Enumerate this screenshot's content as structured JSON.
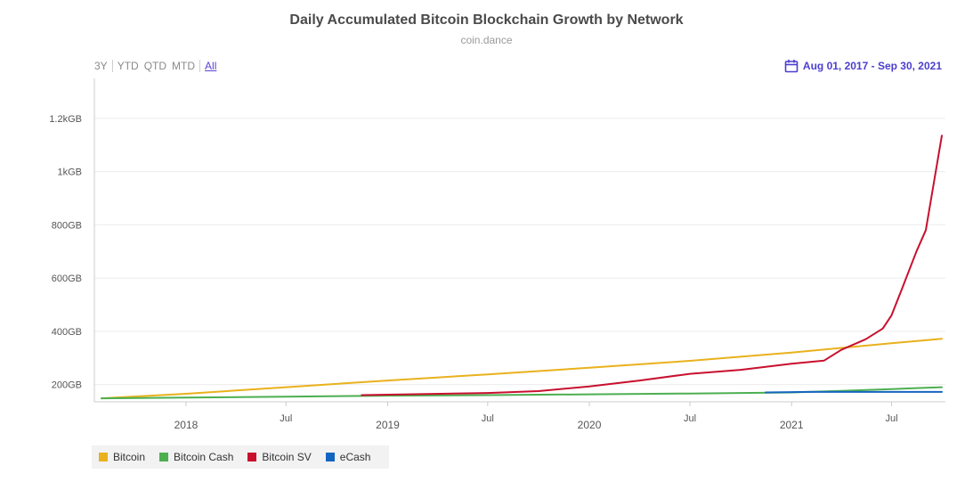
{
  "header": {
    "title": "Daily Accumulated Bitcoin Blockchain Growth by Network",
    "subtitle": "coin.dance"
  },
  "range_selector": {
    "buttons": [
      "3Y",
      "YTD",
      "QTD",
      "MTD",
      "All"
    ],
    "active": "All"
  },
  "date_range": {
    "label": "Aug 01, 2017 - Sep 30, 2021",
    "icon": "calendar-icon",
    "color": "#4b3fcf"
  },
  "chart_data": {
    "type": "line",
    "title": "Daily Accumulated Bitcoin Blockchain Growth by Network",
    "subtitle": "coin.dance",
    "x_range": [
      "2017-08-01",
      "2021-09-30"
    ],
    "x_ticks": [
      "2018",
      "Jul",
      "2019",
      "Jul",
      "2020",
      "Jul",
      "2021",
      "Jul"
    ],
    "x_tick_dates": [
      "2018-01-01",
      "2018-07-01",
      "2019-01-01",
      "2019-07-01",
      "2020-01-01",
      "2020-07-01",
      "2021-01-01",
      "2021-07-01"
    ],
    "y_unit": "GB",
    "ylim": [
      135,
      1350
    ],
    "y_ticks": [
      200,
      400,
      600,
      800,
      1000,
      1200
    ],
    "y_tick_labels": [
      "200GB",
      "400GB",
      "600GB",
      "800GB",
      "1kGB",
      "1.2kGB"
    ],
    "grid": true,
    "legend_position": "bottom-left",
    "series": [
      {
        "name": "Bitcoin",
        "color": "#e9b11d",
        "points": [
          [
            "2017-08-01",
            148
          ],
          [
            "2018-01-01",
            165
          ],
          [
            "2018-07-01",
            190
          ],
          [
            "2019-01-01",
            215
          ],
          [
            "2019-07-01",
            238
          ],
          [
            "2020-01-01",
            263
          ],
          [
            "2020-07-01",
            289
          ],
          [
            "2021-01-01",
            320
          ],
          [
            "2021-07-01",
            355
          ],
          [
            "2021-09-30",
            372
          ]
        ]
      },
      {
        "name": "Bitcoin Cash",
        "color": "#4caf50",
        "points": [
          [
            "2017-08-01",
            148
          ],
          [
            "2018-01-01",
            151
          ],
          [
            "2018-07-01",
            154
          ],
          [
            "2019-01-01",
            158
          ],
          [
            "2019-07-01",
            160
          ],
          [
            "2020-01-01",
            163
          ],
          [
            "2020-07-01",
            166
          ],
          [
            "2021-01-01",
            170
          ],
          [
            "2021-04-01",
            176
          ],
          [
            "2021-07-01",
            183
          ],
          [
            "2021-09-30",
            190
          ]
        ]
      },
      {
        "name": "Bitcoin SV",
        "color": "#c8102e",
        "points": [
          [
            "2018-11-15",
            160
          ],
          [
            "2019-07-01",
            168
          ],
          [
            "2019-10-01",
            175
          ],
          [
            "2020-01-01",
            193
          ],
          [
            "2020-04-01",
            215
          ],
          [
            "2020-07-01",
            240
          ],
          [
            "2020-10-01",
            255
          ],
          [
            "2021-01-01",
            278
          ],
          [
            "2021-03-01",
            290
          ],
          [
            "2021-04-01",
            330
          ],
          [
            "2021-05-15",
            370
          ],
          [
            "2021-06-15",
            410
          ],
          [
            "2021-07-01",
            460
          ],
          [
            "2021-07-20",
            560
          ],
          [
            "2021-08-15",
            700
          ],
          [
            "2021-09-01",
            780
          ],
          [
            "2021-09-30",
            1135
          ]
        ]
      },
      {
        "name": "eCash",
        "color": "#1565c0",
        "points": [
          [
            "2020-11-15",
            170
          ],
          [
            "2021-02-01",
            172
          ],
          [
            "2021-06-01",
            172
          ],
          [
            "2021-09-30",
            172
          ]
        ]
      }
    ]
  },
  "legend": [
    {
      "label": "Bitcoin",
      "color": "#e9b11d"
    },
    {
      "label": "Bitcoin Cash",
      "color": "#4caf50"
    },
    {
      "label": "Bitcoin SV",
      "color": "#c8102e"
    },
    {
      "label": "eCash",
      "color": "#1565c0"
    }
  ]
}
